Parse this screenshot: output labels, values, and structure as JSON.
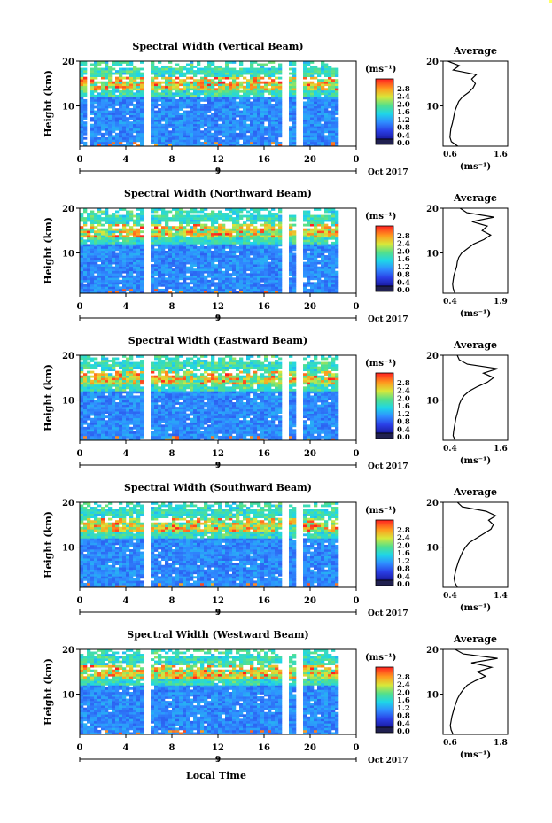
{
  "figure": {
    "xlabel": "Local Time",
    "colorbar_unit": "(ms⁻¹)",
    "profile_title": "Average",
    "date_label": "Oct 2017"
  },
  "chart_data": [
    {
      "type": "heatmap",
      "title": "Spectral Width (Vertical Beam)",
      "ylabel": "Height (km)",
      "xlabel": "Local Time",
      "x_ticks": [
        "0",
        "4",
        "8",
        "12",
        "16",
        "20",
        "0"
      ],
      "day_label": "9",
      "xlim": [
        0,
        24
      ],
      "ylim": [
        1,
        20
      ],
      "y_ticks": [
        "10",
        "20"
      ],
      "colorbar": {
        "label": "(ms⁻¹)",
        "ticks": [
          "0.0",
          "0.4",
          "0.8",
          "1.2",
          "1.6",
          "2.0",
          "2.4",
          "2.8"
        ],
        "range": [
          0,
          3.0
        ]
      },
      "data_gaps_hours": [
        [
          0.5,
          0.9
        ],
        [
          5.6,
          6.2
        ],
        [
          17.5,
          18.2
        ],
        [
          18.7,
          19.3
        ],
        [
          22.4,
          24
        ]
      ],
      "profile": {
        "title": "Average",
        "xlabel": "(ms⁻¹)",
        "x_ticks": [
          "0.6",
          "1.6"
        ],
        "xlim": [
          0.4,
          1.8
        ],
        "y_ticks": [
          "10",
          "20"
        ],
        "heights_km": [
          1,
          2,
          3,
          4,
          5,
          6,
          7,
          8,
          9,
          10,
          11,
          12,
          13,
          14,
          15,
          16,
          17,
          18,
          19,
          20
        ],
        "values": [
          0.72,
          0.58,
          0.55,
          0.56,
          0.57,
          0.6,
          0.62,
          0.64,
          0.66,
          0.7,
          0.74,
          0.82,
          0.95,
          1.05,
          1.1,
          1.02,
          1.12,
          0.62,
          0.75,
          0.5
        ]
      }
    },
    {
      "type": "heatmap",
      "title": "Spectral Width (Northward Beam)",
      "ylabel": "Height (km)",
      "xlabel": "Local Time",
      "x_ticks": [
        "0",
        "4",
        "8",
        "12",
        "16",
        "20",
        "0"
      ],
      "day_label": "9",
      "xlim": [
        0,
        24
      ],
      "ylim": [
        1,
        20
      ],
      "y_ticks": [
        "10",
        "20"
      ],
      "colorbar": {
        "label": "(ms⁻¹)",
        "ticks": [
          "0.0",
          "0.4",
          "0.8",
          "1.2",
          "1.6",
          "2.0",
          "2.4",
          "2.8"
        ],
        "range": [
          0,
          3.0
        ]
      },
      "data_gaps_hours": [
        [
          5.6,
          6.2
        ],
        [
          17.5,
          18.2
        ],
        [
          18.7,
          19.3
        ],
        [
          22.4,
          24
        ]
      ],
      "profile": {
        "title": "Average",
        "xlabel": "(ms⁻¹)",
        "x_ticks": [
          "0.4",
          "1.9"
        ],
        "xlim": [
          0.2,
          2.1
        ],
        "y_ticks": [
          "10",
          "20"
        ],
        "heights_km": [
          1,
          2,
          3,
          4,
          5,
          6,
          7,
          8,
          9,
          10,
          11,
          12,
          13,
          14,
          15,
          16,
          17,
          18,
          19,
          20
        ],
        "values": [
          0.55,
          0.5,
          0.48,
          0.5,
          0.52,
          0.56,
          0.6,
          0.62,
          0.66,
          0.75,
          0.92,
          1.1,
          1.4,
          1.6,
          1.35,
          1.5,
          1.05,
          1.7,
          0.9,
          0.7
        ]
      }
    },
    {
      "type": "heatmap",
      "title": "Spectral Width (Eastward Beam)",
      "ylabel": "Height (km)",
      "xlabel": "Local Time",
      "x_ticks": [
        "0",
        "4",
        "8",
        "12",
        "16",
        "20",
        "0"
      ],
      "day_label": "9",
      "xlim": [
        0,
        24
      ],
      "ylim": [
        1,
        20
      ],
      "y_ticks": [
        "10",
        "20"
      ],
      "colorbar": {
        "label": "(ms⁻¹)",
        "ticks": [
          "0.0",
          "0.4",
          "0.8",
          "1.2",
          "1.6",
          "2.0",
          "2.4",
          "2.8"
        ],
        "range": [
          0,
          3.0
        ]
      },
      "data_gaps_hours": [
        [
          5.6,
          6.2
        ],
        [
          17.5,
          18.2
        ],
        [
          18.7,
          19.3
        ],
        [
          22.4,
          24
        ]
      ],
      "profile": {
        "title": "Average",
        "xlabel": "(ms⁻¹)",
        "x_ticks": [
          "0.4",
          "1.6"
        ],
        "xlim": [
          0.2,
          1.8
        ],
        "y_ticks": [
          "10",
          "20"
        ],
        "heights_km": [
          1,
          2,
          3,
          4,
          5,
          6,
          7,
          8,
          9,
          10,
          11,
          12,
          13,
          14,
          15,
          16,
          17,
          18,
          19,
          20
        ],
        "values": [
          0.5,
          0.45,
          0.46,
          0.48,
          0.5,
          0.52,
          0.55,
          0.58,
          0.6,
          0.65,
          0.72,
          0.85,
          1.05,
          1.3,
          1.45,
          1.2,
          1.55,
          0.8,
          0.6,
          0.55
        ]
      }
    },
    {
      "type": "heatmap",
      "title": "Spectral Width (Southward Beam)",
      "ylabel": "Height (km)",
      "xlabel": "Local Time",
      "x_ticks": [
        "0",
        "4",
        "8",
        "12",
        "16",
        "20",
        "0"
      ],
      "day_label": "9",
      "xlim": [
        0,
        24
      ],
      "ylim": [
        1,
        20
      ],
      "y_ticks": [
        "10",
        "20"
      ],
      "colorbar": {
        "label": "(ms⁻¹)",
        "ticks": [
          "0.0",
          "0.4",
          "0.8",
          "1.2",
          "1.6",
          "2.0",
          "2.4",
          "2.8"
        ],
        "range": [
          0,
          3.0
        ]
      },
      "data_gaps_hours": [
        [
          5.6,
          6.2
        ],
        [
          17.5,
          18.2
        ],
        [
          18.7,
          19.3
        ],
        [
          22.4,
          24
        ]
      ],
      "profile": {
        "title": "Average",
        "xlabel": "(ms⁻¹)",
        "x_ticks": [
          "0.4",
          "1.4"
        ],
        "xlim": [
          0.25,
          1.6
        ],
        "y_ticks": [
          "10",
          "20"
        ],
        "heights_km": [
          1,
          2,
          3,
          4,
          5,
          6,
          7,
          8,
          9,
          10,
          11,
          12,
          13,
          14,
          15,
          16,
          17,
          18,
          19,
          20
        ],
        "values": [
          0.55,
          0.5,
          0.48,
          0.5,
          0.52,
          0.55,
          0.58,
          0.62,
          0.66,
          0.72,
          0.8,
          0.95,
          1.1,
          1.25,
          1.3,
          1.2,
          1.35,
          1.15,
          0.65,
          0.55
        ]
      }
    },
    {
      "type": "heatmap",
      "title": "Spectral Width (Westward Beam)",
      "ylabel": "Height (km)",
      "xlabel": "Local Time",
      "x_ticks": [
        "0",
        "4",
        "8",
        "12",
        "16",
        "20",
        "0"
      ],
      "day_label": "9",
      "xlim": [
        0,
        24
      ],
      "ylim": [
        1,
        20
      ],
      "y_ticks": [
        "10",
        "20"
      ],
      "colorbar": {
        "label": "(ms⁻¹)",
        "ticks": [
          "0.0",
          "0.4",
          "0.8",
          "1.2",
          "1.6",
          "2.0",
          "2.4",
          "2.8"
        ],
        "range": [
          0,
          3.0
        ]
      },
      "data_gaps_hours": [
        [
          5.6,
          6.2
        ],
        [
          17.5,
          18.2
        ],
        [
          18.7,
          19.3
        ],
        [
          22.4,
          24
        ]
      ],
      "profile": {
        "title": "Average",
        "xlabel": "(ms⁻¹)",
        "x_ticks": [
          "0.6",
          "1.8"
        ],
        "xlim": [
          0.4,
          2.0
        ],
        "y_ticks": [
          "10",
          "20"
        ],
        "heights_km": [
          1,
          2,
          3,
          4,
          5,
          6,
          7,
          8,
          9,
          10,
          11,
          12,
          13,
          14,
          15,
          16,
          17,
          18,
          19,
          20
        ],
        "values": [
          0.65,
          0.6,
          0.58,
          0.6,
          0.62,
          0.65,
          0.68,
          0.72,
          0.76,
          0.82,
          0.9,
          1.0,
          1.2,
          1.45,
          1.25,
          1.6,
          1.1,
          1.75,
          0.9,
          0.7
        ]
      }
    }
  ]
}
